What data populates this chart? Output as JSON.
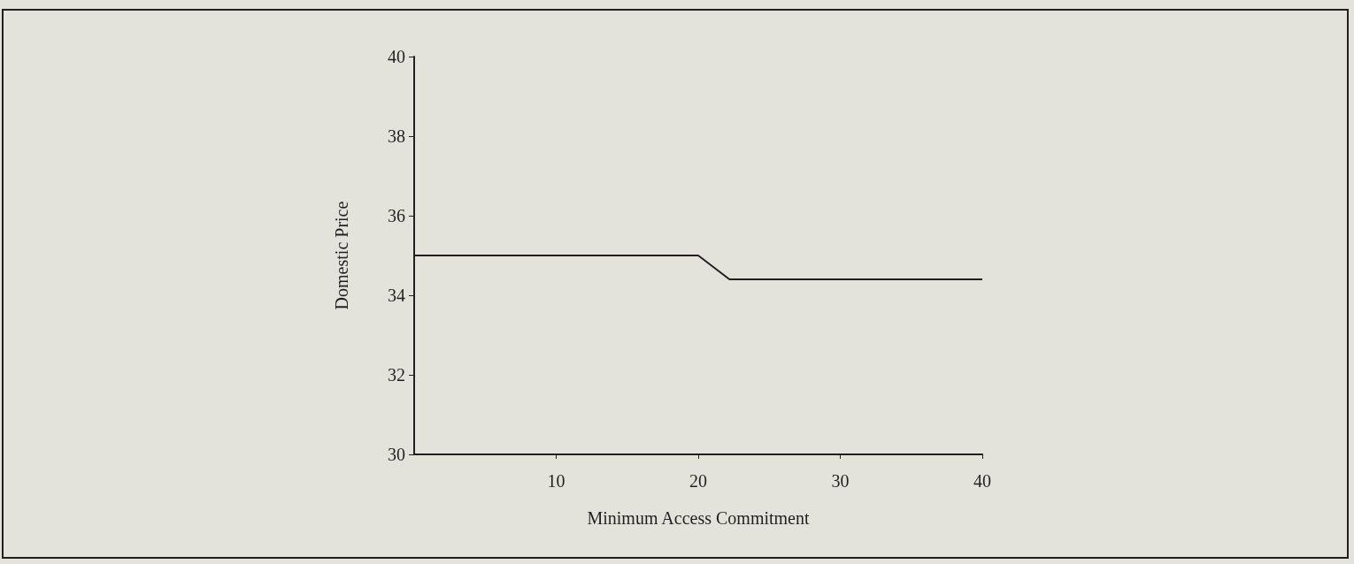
{
  "chart_data": {
    "type": "line",
    "xlabel": "Minimum Access Commitment",
    "ylabel": "Domestic Price",
    "x": [
      0,
      20,
      22.2,
      40
    ],
    "series": [
      {
        "color": "#231f20",
        "values": [
          35,
          35,
          34.4,
          34.4
        ]
      }
    ],
    "xlim": [
      0,
      40
    ],
    "xticks": [
      10,
      20,
      30,
      40
    ],
    "ylim": [
      30,
      40
    ],
    "yticks": [
      30,
      32,
      34,
      36,
      38,
      40
    ],
    "grid": false,
    "marker": "none",
    "line_style": "solid"
  }
}
